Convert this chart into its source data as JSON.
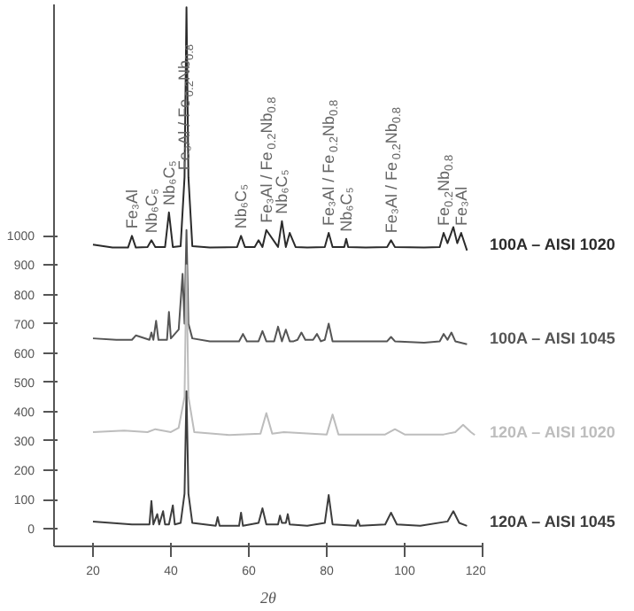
{
  "chart_data": {
    "type": "line",
    "xlabel": "2θ",
    "xlim": [
      10,
      120
    ],
    "ylim": [
      -60,
      1790
    ],
    "xticks": [
      20,
      40,
      60,
      80,
      100,
      120
    ],
    "yticks": [
      0,
      100,
      200,
      300,
      400,
      500,
      600,
      700,
      800,
      900,
      1000
    ],
    "grid": false,
    "series": [
      {
        "name": "100A – AISI 1020",
        "color": "#2b2b2b",
        "x": [
          20,
          25,
          29,
          30,
          31,
          34,
          35,
          36,
          38.5,
          39.5,
          40.5,
          42.5,
          43.5,
          44,
          44.5,
          45.5,
          50,
          57,
          58,
          59,
          61.5,
          62.5,
          63.5,
          64.5,
          67.5,
          68.5,
          69.5,
          70.5,
          72,
          75,
          79.5,
          80.5,
          81.5,
          84.5,
          85,
          85.5,
          90,
          95.5,
          96.5,
          97.5,
          105,
          109,
          110,
          111,
          112.5,
          113.5,
          114.5,
          116
        ],
        "values": [
          970,
          960,
          960,
          1000,
          960,
          962,
          985,
          962,
          962,
          1080,
          962,
          965,
          1200,
          1780,
          1200,
          965,
          960,
          962,
          1000,
          962,
          962,
          985,
          962,
          1020,
          962,
          1050,
          962,
          1010,
          962,
          960,
          962,
          1010,
          962,
          962,
          990,
          962,
          960,
          962,
          985,
          962,
          960,
          962,
          1010,
          975,
          1030,
          975,
          1010,
          950
        ]
      },
      {
        "name": "100A – AISI 1045",
        "color": "#555555",
        "x": [
          20,
          26,
          30,
          31,
          34.5,
          35,
          35.5,
          36.2,
          36.8,
          37.5,
          39,
          39.5,
          40,
          42,
          43,
          43.5,
          44,
          44.5,
          45.5,
          50,
          57.5,
          58.5,
          59.5,
          62.5,
          63.5,
          64.5,
          66.5,
          67.5,
          68.5,
          69.5,
          70.5,
          71.5,
          72.5,
          73.5,
          74.5,
          76.5,
          77.5,
          78.5,
          79.5,
          80.5,
          81.5,
          87,
          95.5,
          96.5,
          97.5,
          105,
          109,
          110,
          111,
          112,
          113,
          116
        ],
        "values": [
          650,
          645,
          645,
          660,
          645,
          670,
          645,
          710,
          645,
          645,
          645,
          740,
          650,
          680,
          870,
          700,
          1020,
          700,
          650,
          640,
          640,
          665,
          640,
          640,
          675,
          640,
          640,
          690,
          640,
          680,
          640,
          640,
          645,
          670,
          645,
          645,
          665,
          640,
          645,
          700,
          640,
          640,
          640,
          655,
          640,
          635,
          640,
          665,
          645,
          670,
          640,
          630
        ]
      },
      {
        "name": "120A – AISI 1020",
        "color": "#bdbdbd",
        "x": [
          20,
          28,
          34,
          36,
          40,
          42,
          43.5,
          44,
          44.5,
          46,
          55,
          63,
          64.5,
          66,
          69,
          80,
          81.5,
          83,
          95,
          97.5,
          100,
          110,
          113,
          115,
          117,
          118
        ],
        "values": [
          330,
          335,
          330,
          340,
          330,
          345,
          450,
          900,
          450,
          330,
          320,
          325,
          395,
          325,
          330,
          322,
          390,
          322,
          322,
          340,
          322,
          322,
          330,
          355,
          330,
          320
        ]
      },
      {
        "name": "120A – AISI 1045",
        "color": "#3d3d3d",
        "x": [
          20,
          30,
          34.5,
          35,
          35.5,
          36.5,
          37,
          38,
          38.5,
          39.5,
          40.5,
          41,
          42.5,
          43.5,
          44,
          44.5,
          45.5,
          51.5,
          52,
          52.5,
          57.5,
          58,
          58.5,
          62.5,
          63.5,
          64.5,
          67.5,
          68,
          68.5,
          69.5,
          70,
          70.5,
          75,
          79.5,
          80.5,
          81.5,
          87.5,
          88,
          88.5,
          95,
          96.5,
          98,
          104,
          111,
          112.5,
          114,
          116
        ],
        "values": [
          25,
          15,
          15,
          95,
          15,
          50,
          15,
          60,
          15,
          15,
          80,
          15,
          20,
          120,
          470,
          120,
          20,
          10,
          40,
          10,
          10,
          55,
          10,
          20,
          70,
          15,
          15,
          45,
          20,
          20,
          50,
          15,
          10,
          20,
          115,
          15,
          10,
          30,
          10,
          15,
          55,
          15,
          10,
          25,
          60,
          20,
          10
        ]
      }
    ],
    "annotations": [
      {
        "text": "Fe₃Al",
        "x": 30,
        "y": 1000
      },
      {
        "text": "Nb₆C₅",
        "x": 35,
        "y": 985
      },
      {
        "text": "Nb₆C₅",
        "x": 39.5,
        "y": 1080
      },
      {
        "text": "Fe₃Al / Fe$_{0.2}$Nb$_{0.8}$",
        "x": 43.5,
        "y": 1200
      },
      {
        "text": "Nb₆C₅",
        "x": 58,
        "y": 1000
      },
      {
        "text": "Fe₃Al / Fe$_{0.2}$Nb$_{0.8}$",
        "x": 64.5,
        "y": 1020
      },
      {
        "text": "Nb₆C₅",
        "x": 68.5,
        "y": 1050
      },
      {
        "text": "Fe₃Al / Fe$_{0.2}$Nb$_{0.8}$",
        "x": 80.5,
        "y": 1010
      },
      {
        "text": "Nb₆C₅",
        "x": 85,
        "y": 990
      },
      {
        "text": "Fe₃Al / Fe$_{0.2}$Nb$_{0.8}$",
        "x": 96.5,
        "y": 985
      },
      {
        "text": "Fe$_{0.2}$Nb$_{0.8}$",
        "x": 110,
        "y": 1010
      },
      {
        "text": "Fe₃Al",
        "x": 114.5,
        "y": 1010
      }
    ]
  }
}
